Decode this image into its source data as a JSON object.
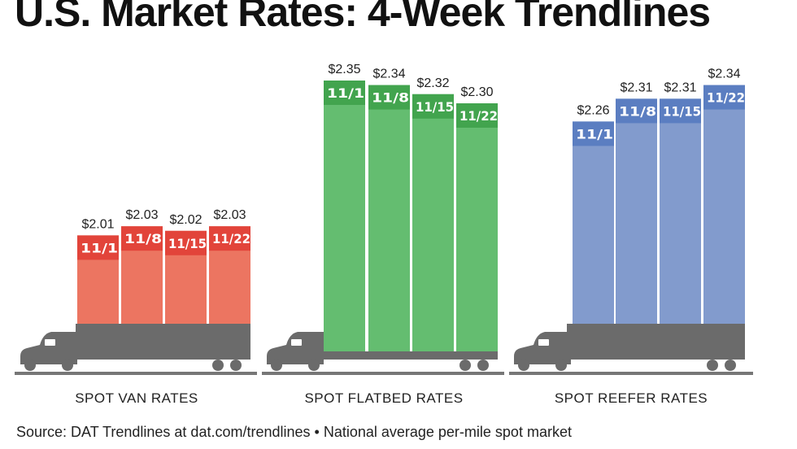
{
  "title": "U.S. Market Rates: 4-Week Trendlines",
  "chart_data": [
    {
      "type": "bar",
      "title": "SPOT VAN RATES",
      "categories": [
        "11/1",
        "11/8",
        "11/15",
        "11/22"
      ],
      "values": [
        2.01,
        2.03,
        2.02,
        2.03
      ],
      "labels": [
        "$2.01",
        "$2.03",
        "$2.02",
        "$2.03"
      ],
      "colors": {
        "bar": "#ec7561",
        "band": "#e2443a"
      }
    },
    {
      "type": "bar",
      "title": "SPOT FLATBED RATES",
      "categories": [
        "11/1",
        "11/8",
        "11/15",
        "11/22"
      ],
      "values": [
        2.35,
        2.34,
        2.32,
        2.3
      ],
      "labels": [
        "$2.35",
        "$2.34",
        "$2.32",
        "$2.30"
      ],
      "colors": {
        "bar": "#64bd70",
        "band": "#42a44e"
      }
    },
    {
      "type": "bar",
      "title": "SPOT REEFER RATES",
      "categories": [
        "11/1",
        "11/8",
        "11/15",
        "11/22"
      ],
      "values": [
        2.26,
        2.31,
        2.31,
        2.34
      ],
      "labels": [
        "$2.26",
        "$2.31",
        "$2.31",
        "$2.34"
      ],
      "colors": {
        "bar": "#829bcd",
        "band": "#5b7ec1"
      }
    }
  ],
  "truck_color": "#6b6b6b",
  "source": "Source: DAT Trendlines at dat.com/trendlines • National average per-mile spot market"
}
